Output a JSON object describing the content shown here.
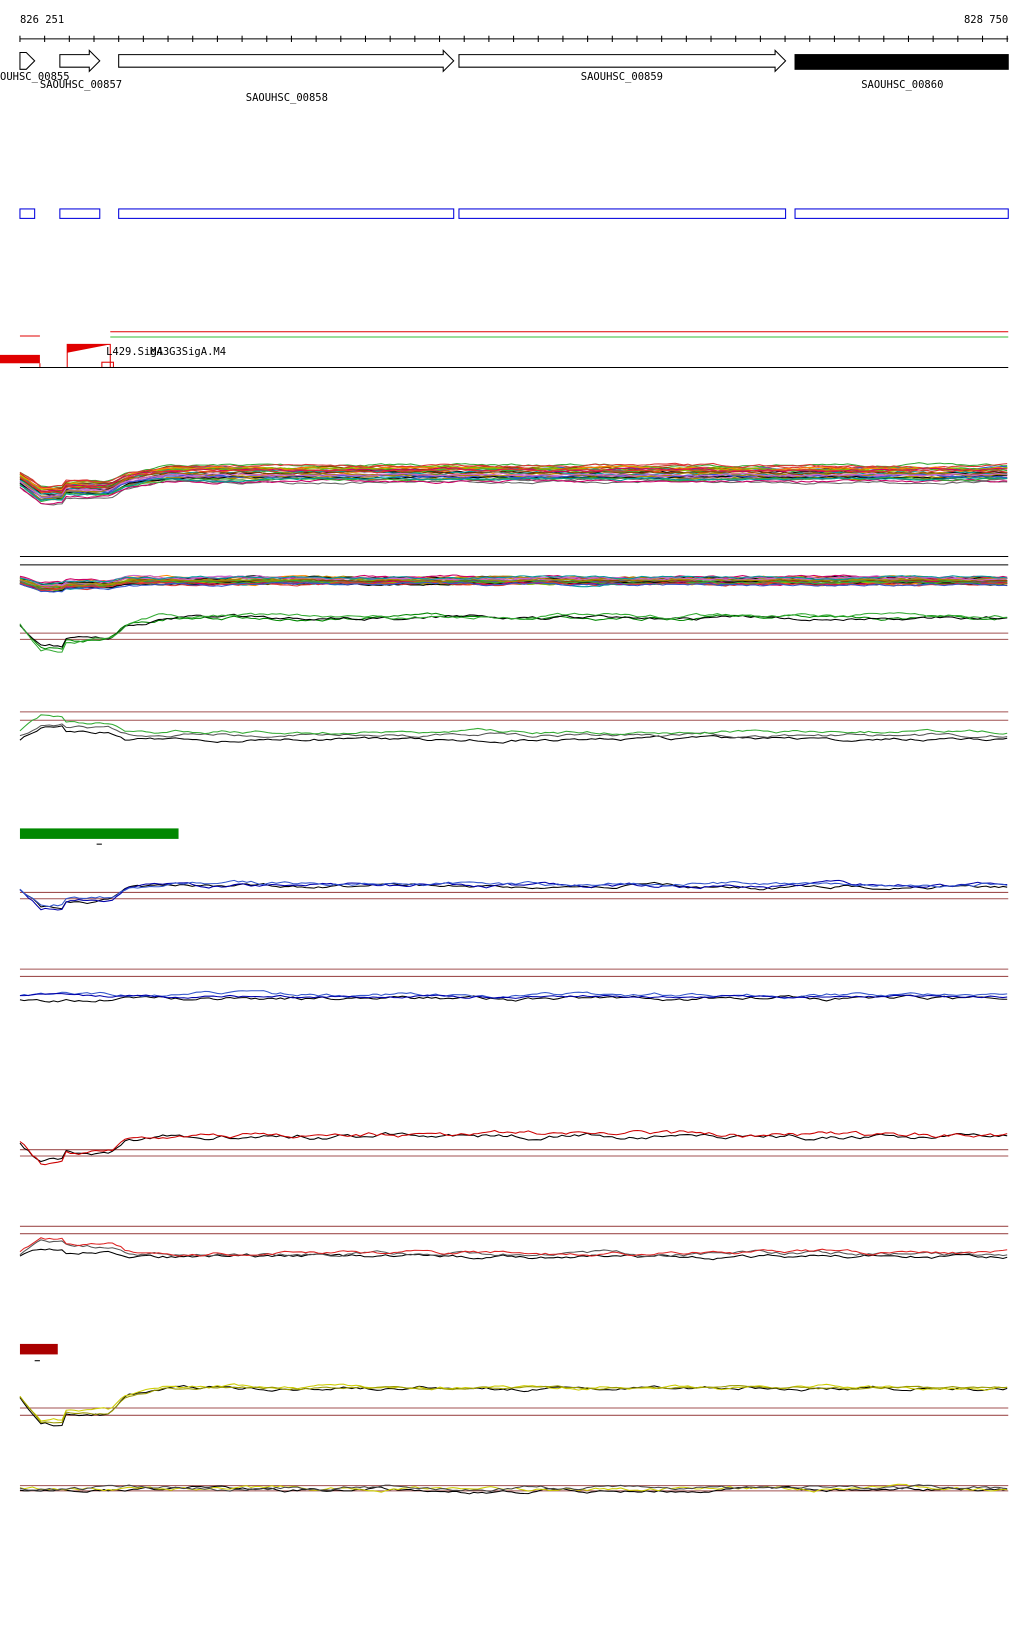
{
  "ruler": {
    "start": "826 251",
    "end": "828 750"
  },
  "genes": [
    {
      "label": "OUHSC_00855"
    },
    {
      "label": "SAOUHSC_00857"
    },
    {
      "label": "SAOUHSC_00858"
    },
    {
      "label": "SAOUHSC_00859"
    },
    {
      "label": "SAOUHSC_00860"
    }
  ],
  "features": [
    {
      "label": "L429.SigA"
    },
    {
      "label": "M43G3SigA.M4"
    }
  ]
}
